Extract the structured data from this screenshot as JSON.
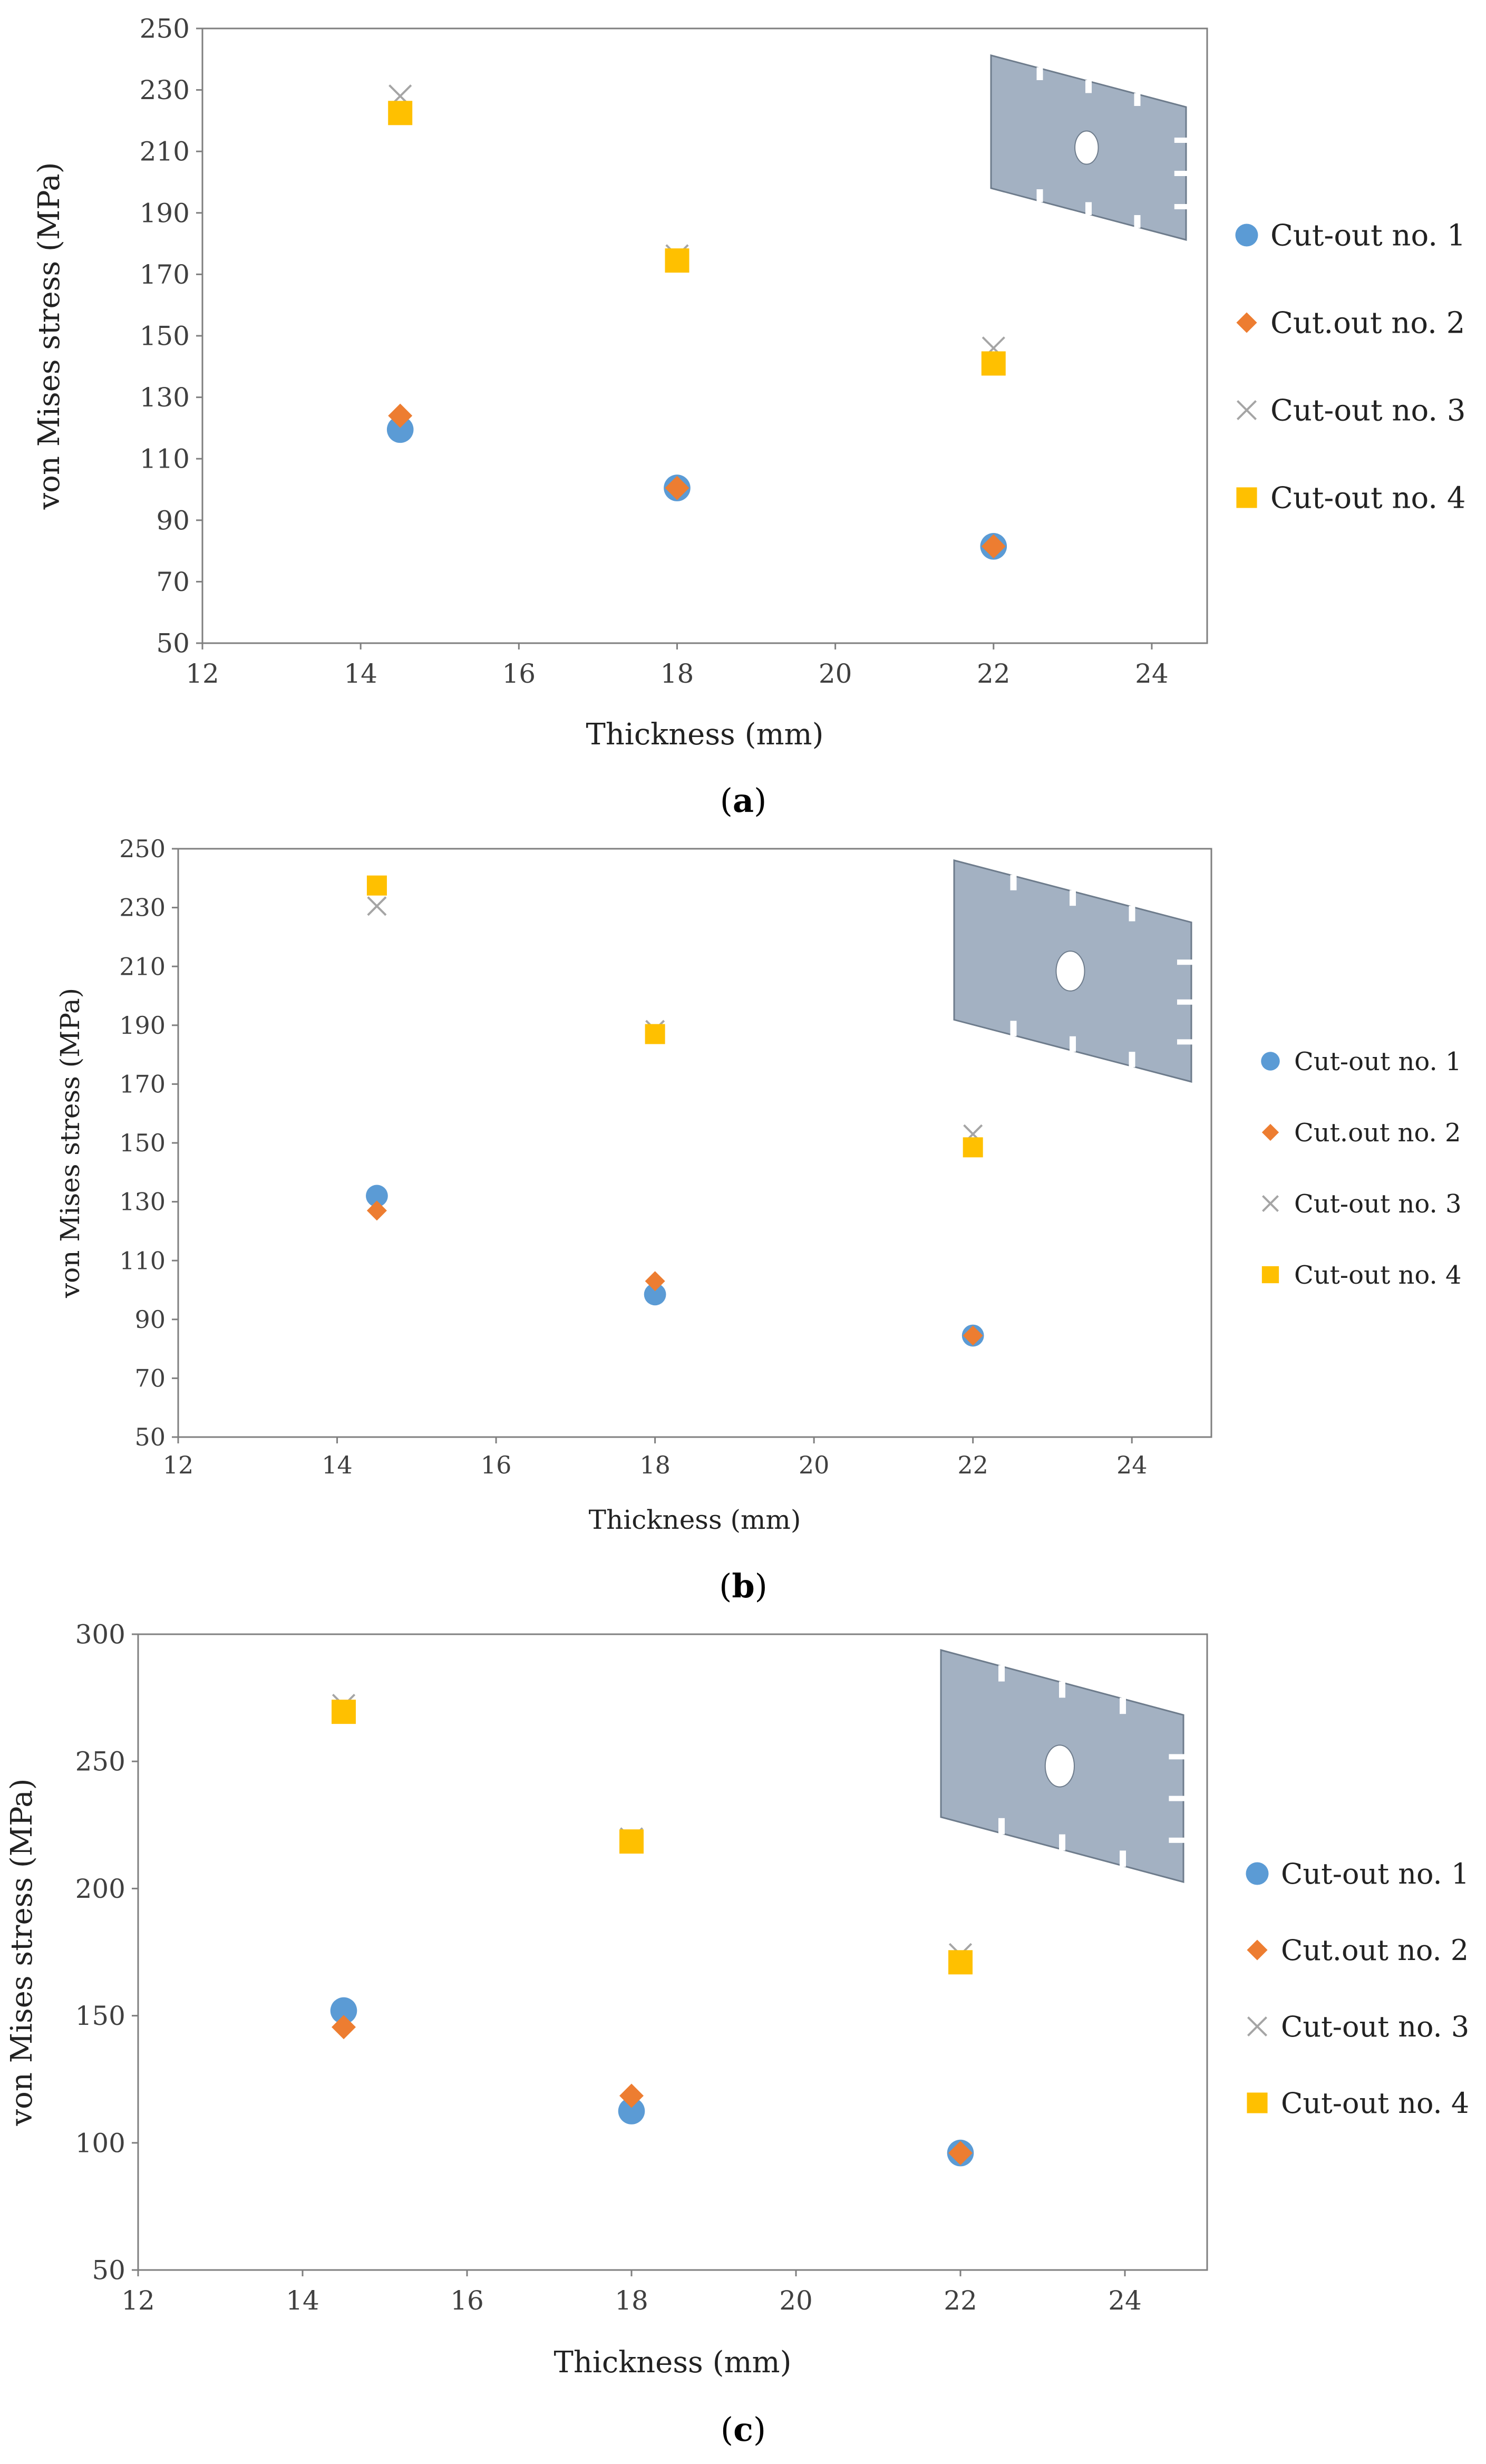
{
  "colors": {
    "series1": "#5B9BD5",
    "series2": "#ED7D31",
    "series3": "#A5A5A5",
    "series4": "#FFC000",
    "plate_fill": "#A3B1C2",
    "plate_stroke": "#6E7C8C"
  },
  "chart_data": [
    {
      "type": "scatter",
      "panel": "a",
      "caption_prefix": "(",
      "caption_letter": "a",
      "caption_suffix": ")",
      "xlabel": "Thickness (mm)",
      "ylabel": "von Mises stress (MPa)",
      "xlim": [
        12,
        24.7
      ],
      "ylim": [
        50,
        250
      ],
      "xticks": [
        12,
        14,
        16,
        18,
        20,
        22,
        24
      ],
      "yticks": [
        50,
        70,
        90,
        110,
        130,
        150,
        170,
        190,
        210,
        230,
        250
      ],
      "grid": false,
      "legend_position": "right",
      "series": [
        {
          "name": "Cut-out no. 1",
          "marker": "circle",
          "x": [
            14.5,
            18,
            22
          ],
          "y": [
            119.5,
            100.5,
            81.5
          ]
        },
        {
          "name": "Cut.out no. 2",
          "marker": "diamond",
          "x": [
            14.5,
            18,
            22
          ],
          "y": [
            124,
            100.5,
            81.5
          ]
        },
        {
          "name": "Cut-out no. 3",
          "marker": "x",
          "x": [
            14.5,
            18,
            22
          ],
          "y": [
            228,
            176,
            146
          ]
        },
        {
          "name": "Cut-out no. 4",
          "marker": "square",
          "x": [
            14.5,
            18,
            22
          ],
          "y": [
            222.5,
            174.5,
            141
          ]
        }
      ]
    },
    {
      "type": "scatter",
      "panel": "b",
      "caption_prefix": "(",
      "caption_letter": "b",
      "caption_suffix": ")",
      "xlabel": "Thickness (mm)",
      "ylabel": "von Mises stress (MPa)",
      "xlim": [
        12,
        25
      ],
      "ylim": [
        50,
        250
      ],
      "xticks": [
        12,
        14,
        16,
        18,
        20,
        22,
        24
      ],
      "yticks": [
        50,
        70,
        90,
        110,
        130,
        150,
        170,
        190,
        210,
        230,
        250
      ],
      "grid": false,
      "legend_position": "right",
      "series": [
        {
          "name": "Cut-out no. 1",
          "marker": "circle",
          "x": [
            14.5,
            18,
            22
          ],
          "y": [
            132,
            98.5,
            84.5
          ]
        },
        {
          "name": "Cut.out no. 2",
          "marker": "diamond",
          "x": [
            14.5,
            18,
            22
          ],
          "y": [
            127,
            103,
            84.5
          ]
        },
        {
          "name": "Cut-out no. 3",
          "marker": "x",
          "x": [
            14.5,
            18,
            22
          ],
          "y": [
            230.5,
            188.5,
            153
          ]
        },
        {
          "name": "Cut-out no. 4",
          "marker": "square",
          "x": [
            14.5,
            18,
            22
          ],
          "y": [
            237.5,
            187,
            148.5
          ]
        }
      ]
    },
    {
      "type": "scatter",
      "panel": "c",
      "caption_prefix": "(",
      "caption_letter": "c",
      "caption_suffix": ")",
      "xlabel": "Thickness (mm)",
      "ylabel": "von Mises stress (MPa)",
      "xlim": [
        12,
        25
      ],
      "ylim": [
        50,
        300
      ],
      "xticks": [
        12,
        14,
        16,
        18,
        20,
        22,
        24
      ],
      "yticks": [
        50,
        100,
        150,
        200,
        250,
        300
      ],
      "grid": false,
      "legend_position": "right",
      "series": [
        {
          "name": "Cut-out no. 1",
          "marker": "circle",
          "x": [
            14.5,
            18,
            22
          ],
          "y": [
            152,
            112.5,
            96
          ]
        },
        {
          "name": "Cut.out no. 2",
          "marker": "diamond",
          "x": [
            14.5,
            18,
            22
          ],
          "y": [
            145.5,
            118.5,
            96
          ]
        },
        {
          "name": "Cut-out no. 3",
          "marker": "x",
          "x": [
            14.5,
            18,
            22
          ],
          "y": [
            272,
            219.5,
            174
          ]
        },
        {
          "name": "Cut-out no. 4",
          "marker": "square",
          "x": [
            14.5,
            18,
            22
          ],
          "y": [
            269.5,
            218.5,
            171
          ]
        }
      ]
    }
  ]
}
